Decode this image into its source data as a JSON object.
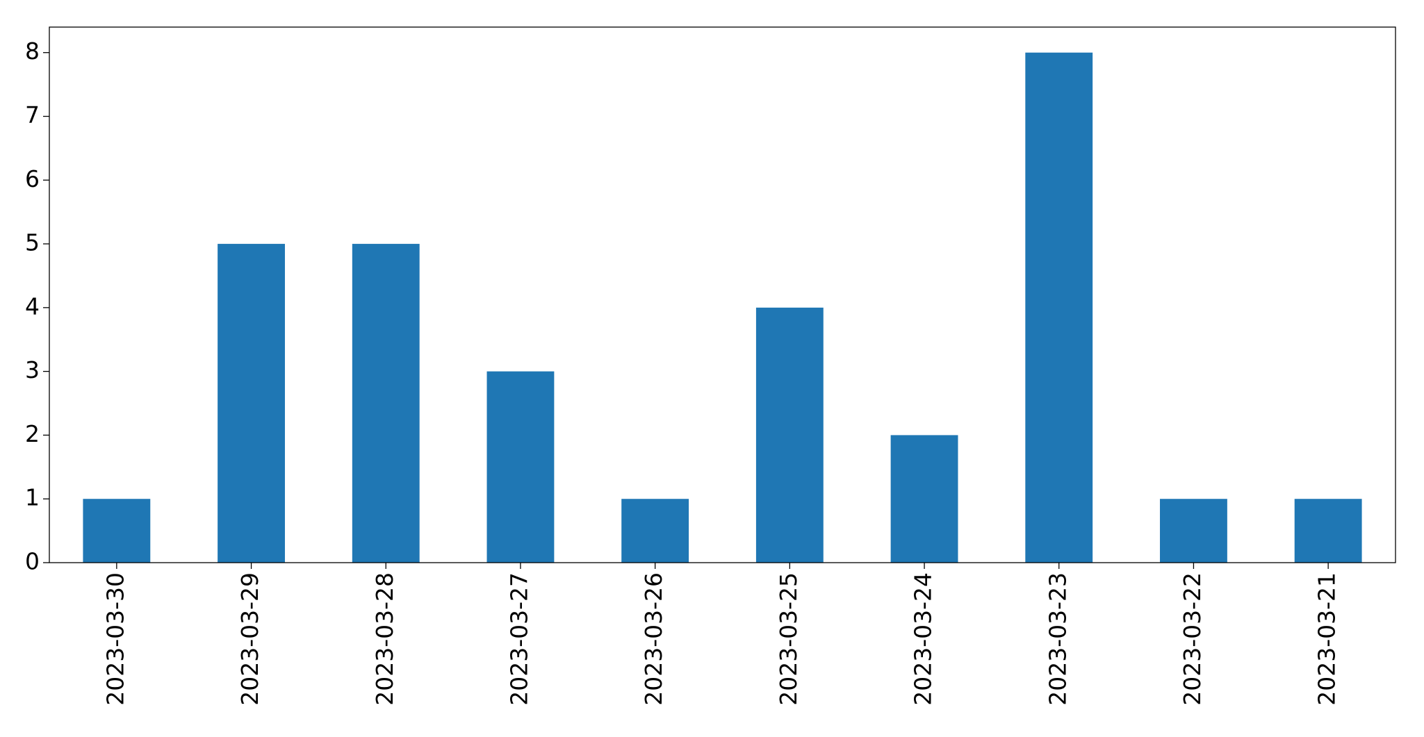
{
  "chart_data": {
    "type": "bar",
    "categories": [
      "2023-03-30",
      "2023-03-29",
      "2023-03-28",
      "2023-03-27",
      "2023-03-26",
      "2023-03-25",
      "2023-03-24",
      "2023-03-23",
      "2023-03-22",
      "2023-03-21"
    ],
    "values": [
      1,
      5,
      5,
      3,
      1,
      4,
      2,
      8,
      1,
      1
    ],
    "color": "#1f77b4",
    "ylim": [
      0,
      8.4
    ],
    "yticks": [
      0,
      1,
      2,
      3,
      4,
      5,
      6,
      7,
      8
    ],
    "grid": false
  }
}
